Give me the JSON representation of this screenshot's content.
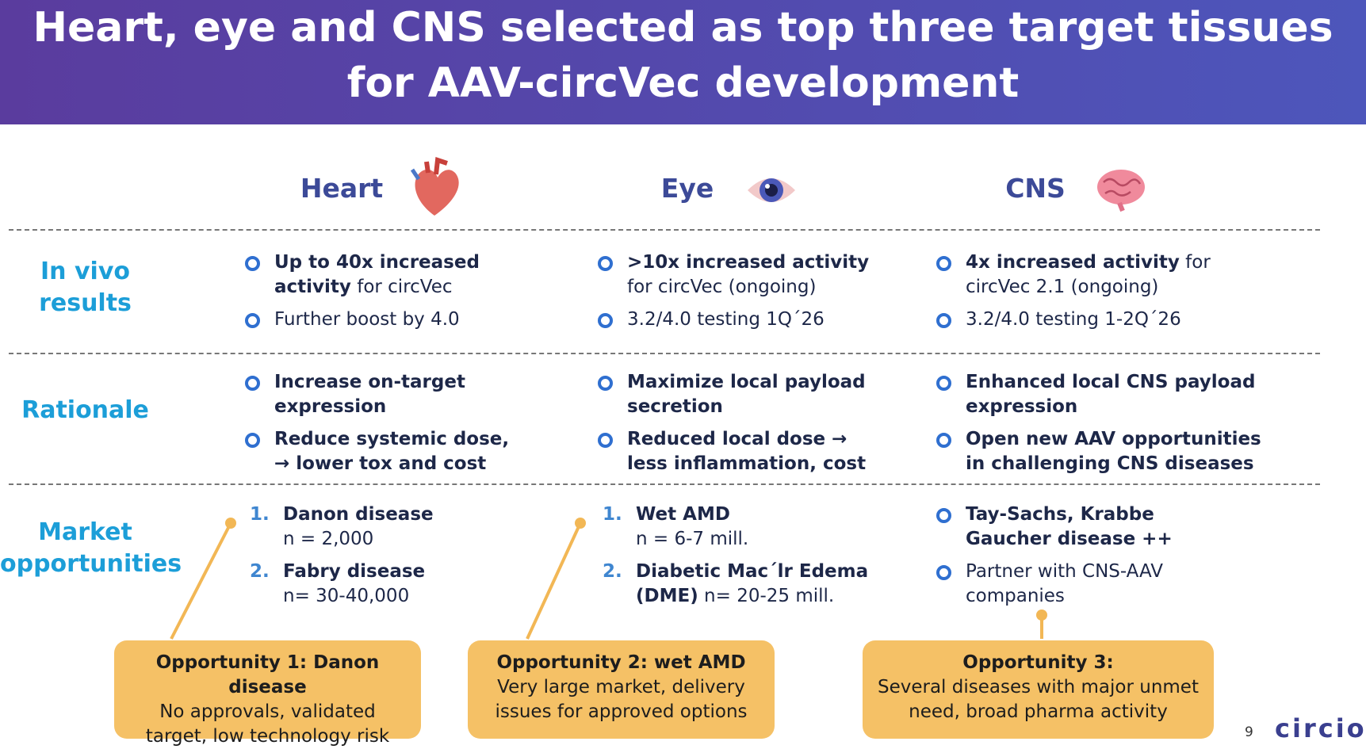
{
  "header": {
    "title": "Heart, eye and CNS selected as top three target tissues\nfor AAV-circVec development"
  },
  "columns": [
    "Heart",
    "Eye",
    "CNS"
  ],
  "rows": [
    {
      "label": "In vivo\nresults",
      "cells": [
        {
          "list": "bullet",
          "items": [
            {
              "runs": [
                {
                  "text": "Up to 40x increased\nactivity",
                  "bold": true
                },
                {
                  "text": " for circVec",
                  "bold": false
                }
              ]
            },
            {
              "runs": [
                {
                  "text": "Further boost by 4.0",
                  "bold": false
                }
              ]
            }
          ]
        },
        {
          "list": "bullet",
          "items": [
            {
              "runs": [
                {
                  "text": ">10x increased activity",
                  "bold": true
                },
                {
                  "text": "\nfor circVec (ongoing)",
                  "bold": false
                }
              ]
            },
            {
              "runs": [
                {
                  "text": "3.2/4.0 testing 1Q´26",
                  "bold": false
                }
              ]
            }
          ]
        },
        {
          "list": "bullet",
          "items": [
            {
              "runs": [
                {
                  "text": "4x increased activity",
                  "bold": true
                },
                {
                  "text": " for\ncircVec 2.1 (ongoing)",
                  "bold": false
                }
              ]
            },
            {
              "runs": [
                {
                  "text": "3.2/4.0 testing 1-2Q´26",
                  "bold": false
                }
              ]
            }
          ]
        }
      ]
    },
    {
      "label": "Rationale",
      "cells": [
        {
          "list": "bullet",
          "items": [
            {
              "runs": [
                {
                  "text": "Increase on-target\nexpression",
                  "bold": true
                }
              ]
            },
            {
              "runs": [
                {
                  "text": "Reduce systemic dose,\n→ lower tox and cost",
                  "bold": true
                }
              ]
            }
          ]
        },
        {
          "list": "bullet",
          "items": [
            {
              "runs": [
                {
                  "text": "Maximize local payload\nsecretion",
                  "bold": true
                }
              ]
            },
            {
              "runs": [
                {
                  "text": "Reduced local dose →\nless inflammation, cost",
                  "bold": true
                }
              ]
            }
          ]
        },
        {
          "list": "bullet",
          "items": [
            {
              "runs": [
                {
                  "text": "Enhanced local CNS payload\nexpression",
                  "bold": true
                }
              ]
            },
            {
              "runs": [
                {
                  "text": "Open new AAV opportunities\nin challenging CNS diseases",
                  "bold": true
                }
              ]
            }
          ]
        }
      ]
    },
    {
      "label": "Market\nopportunities",
      "cells": [
        {
          "list": "numbered",
          "items": [
            {
              "number": "1.",
              "runs": [
                {
                  "text": "Danon disease",
                  "bold": true
                },
                {
                  "text": "\nn = 2,000",
                  "bold": false
                }
              ]
            },
            {
              "number": "2.",
              "runs": [
                {
                  "text": "Fabry disease",
                  "bold": true
                },
                {
                  "text": "\nn= 30-40,000",
                  "bold": false
                }
              ]
            }
          ]
        },
        {
          "list": "numbered",
          "items": [
            {
              "number": "1.",
              "runs": [
                {
                  "text": "Wet AMD",
                  "bold": true
                },
                {
                  "text": "\nn = 6-7 mill.",
                  "bold": false
                }
              ]
            },
            {
              "number": "2.",
              "runs": [
                {
                  "text": "Diabetic Mac´lr Edema\n(DME)",
                  "bold": true
                },
                {
                  "text": " n= 20-25 mill.",
                  "bold": false
                }
              ]
            }
          ]
        },
        {
          "list": "bullet",
          "items": [
            {
              "runs": [
                {
                  "text": "Tay-Sachs, Krabbe\nGaucher disease ++",
                  "bold": true
                }
              ]
            },
            {
              "runs": [
                {
                  "text": "Partner with CNS-AAV\ncompanies",
                  "bold": false
                }
              ]
            }
          ]
        }
      ]
    }
  ],
  "opportunities": [
    {
      "title": "Opportunity 1: Danon disease",
      "text": "No approvals, validated\ntarget, low technology risk"
    },
    {
      "title": "Opportunity 2: wet AMD",
      "text": "Very large market, delivery\nissues for approved options"
    },
    {
      "title": "Opportunity 3:",
      "text": "Several diseases with major unmet\nneed,  broad pharma activity"
    }
  ],
  "footer": {
    "page_number": "9",
    "logo": "circio"
  }
}
